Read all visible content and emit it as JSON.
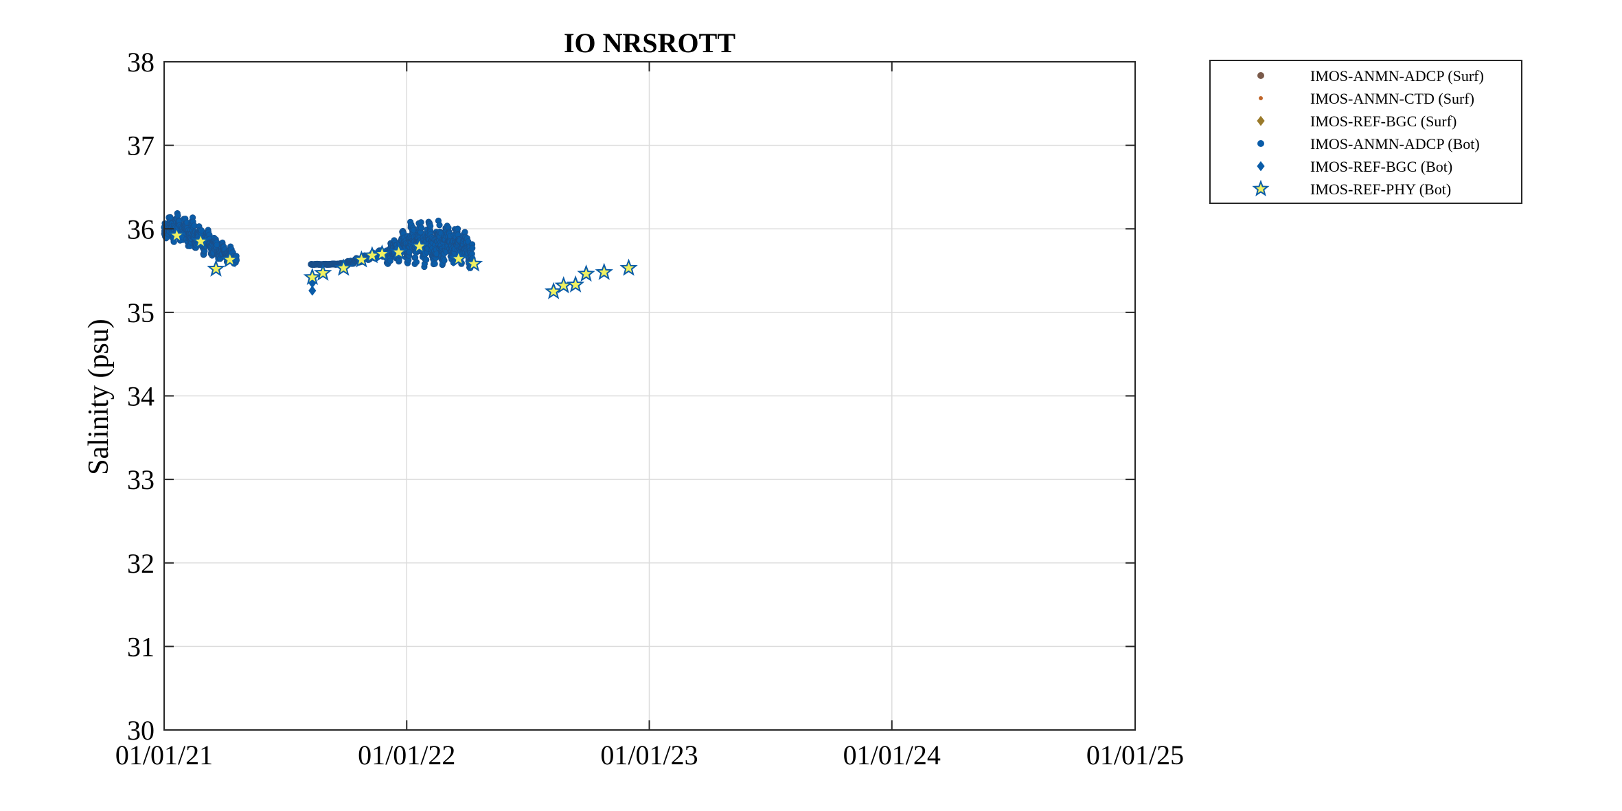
{
  "chart_data": {
    "type": "scatter",
    "title": "IO NRSROTT",
    "xlabel": "",
    "ylabel": "Salinity (psu)",
    "xlim": [
      "01/01/21",
      "01/01/25"
    ],
    "ylim": [
      30,
      38
    ],
    "x_ticks": [
      "01/01/21",
      "01/01/22",
      "01/01/23",
      "01/01/24",
      "01/01/25"
    ],
    "y_ticks": [
      30,
      31,
      32,
      33,
      34,
      35,
      36,
      37,
      38
    ],
    "grid": true,
    "legend_position": "outside-top-right",
    "series": [
      {
        "name": "IMOS-ANMN-ADCP (Surf)",
        "marker": "dot",
        "color": "#7a5a4a",
        "points": []
      },
      {
        "name": "IMOS-ANMN-CTD (Surf)",
        "marker": "small-dot",
        "color": "#c0662a",
        "points": []
      },
      {
        "name": "IMOS-REF-BGC (Surf)",
        "marker": "diamond",
        "color": "#9a7a2a",
        "points": []
      },
      {
        "name": "IMOS-ANMN-ADCP (Bot)",
        "marker": "dot",
        "color": "#0a5ca8",
        "segments": [
          {
            "from": "2021-01-01",
            "to": "2021-04-20",
            "low": [
              35.85,
              35.8,
              35.7,
              35.65,
              35.6,
              35.55
            ],
            "high": [
              36.15,
              36.2,
              36.15,
              36.0,
              35.85,
              35.75
            ]
          },
          {
            "from": "2021-08-10",
            "to": "2021-12-01",
            "low": [
              35.57,
              35.57,
              35.57,
              35.58,
              35.62,
              35.65
            ],
            "high": [
              35.58,
              35.58,
              35.59,
              35.65,
              35.72,
              35.78
            ]
          },
          {
            "from": "2021-12-01",
            "to": "2022-04-10",
            "low": [
              35.55,
              35.55,
              35.5,
              35.55,
              35.5
            ],
            "high": [
              35.85,
              36.1,
              36.15,
              36.1,
              35.95
            ]
          }
        ]
      },
      {
        "name": "IMOS-REF-BGC (Bot)",
        "marker": "diamond",
        "color": "#0a5ca8",
        "points": [
          {
            "x": "2021-08-12",
            "y": 35.35
          },
          {
            "x": "2021-08-12",
            "y": 35.26
          }
        ]
      },
      {
        "name": "IMOS-REF-PHY (Bot)",
        "marker": "star",
        "color": "#0a5ca8",
        "fill": "#f0f060",
        "points": [
          {
            "x": "2021-01-20",
            "y": 35.92
          },
          {
            "x": "2021-02-25",
            "y": 35.85
          },
          {
            "x": "2021-03-20",
            "y": 35.52
          },
          {
            "x": "2021-04-10",
            "y": 35.63
          },
          {
            "x": "2021-08-12",
            "y": 35.42
          },
          {
            "x": "2021-08-28",
            "y": 35.47
          },
          {
            "x": "2021-09-28",
            "y": 35.53
          },
          {
            "x": "2021-10-25",
            "y": 35.63
          },
          {
            "x": "2021-11-10",
            "y": 35.68
          },
          {
            "x": "2021-11-25",
            "y": 35.7
          },
          {
            "x": "2021-12-20",
            "y": 35.72
          },
          {
            "x": "2022-01-20",
            "y": 35.79
          },
          {
            "x": "2022-03-20",
            "y": 35.64
          },
          {
            "x": "2022-04-12",
            "y": 35.58
          },
          {
            "x": "2022-08-10",
            "y": 35.25
          },
          {
            "x": "2022-08-25",
            "y": 35.32
          },
          {
            "x": "2022-09-12",
            "y": 35.33
          },
          {
            "x": "2022-09-28",
            "y": 35.46
          },
          {
            "x": "2022-10-25",
            "y": 35.48
          },
          {
            "x": "2022-12-01",
            "y": 35.53
          }
        ]
      }
    ]
  }
}
